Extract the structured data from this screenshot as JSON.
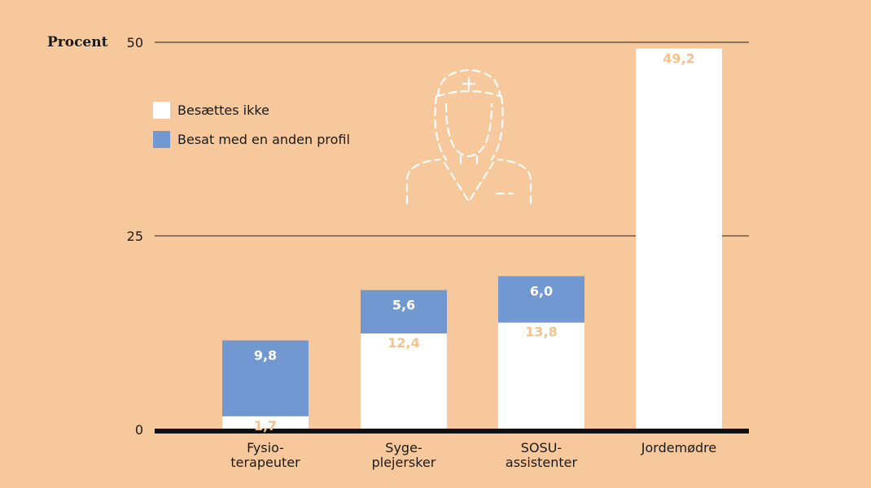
{
  "colors": {
    "background": "#F7C89B",
    "white_series": "#FFFFFF",
    "blue_series": "#7198D1",
    "white_label": "#F2C28F",
    "blue_label": "#FFFFFF",
    "axis": "#111111"
  },
  "icon": "nurse-outline-icon",
  "chart_data": {
    "type": "bar",
    "stacked": true,
    "ylabel": "Procent",
    "ylim": [
      0,
      50
    ],
    "yticks": [
      0,
      25,
      50
    ],
    "grid": true,
    "legend_position": "top-left",
    "categories": [
      [
        "Fysio-",
        "terapeuter"
      ],
      [
        "Syge-",
        "plejersker"
      ],
      [
        "SOSU-",
        "assistenter"
      ],
      [
        "Jordemødre"
      ]
    ],
    "series": [
      {
        "name": "Besættes ikke",
        "color": "#FFFFFF",
        "values": [
          1.7,
          12.4,
          13.8,
          49.2
        ],
        "labels": [
          "1,7",
          "12,4",
          "13,8",
          "49,2"
        ]
      },
      {
        "name": "Besat med en anden profil",
        "color": "#7198D1",
        "values": [
          9.8,
          5.6,
          6.0,
          null
        ],
        "labels": [
          "9,8",
          "5,6",
          "6,0",
          ""
        ]
      }
    ]
  }
}
